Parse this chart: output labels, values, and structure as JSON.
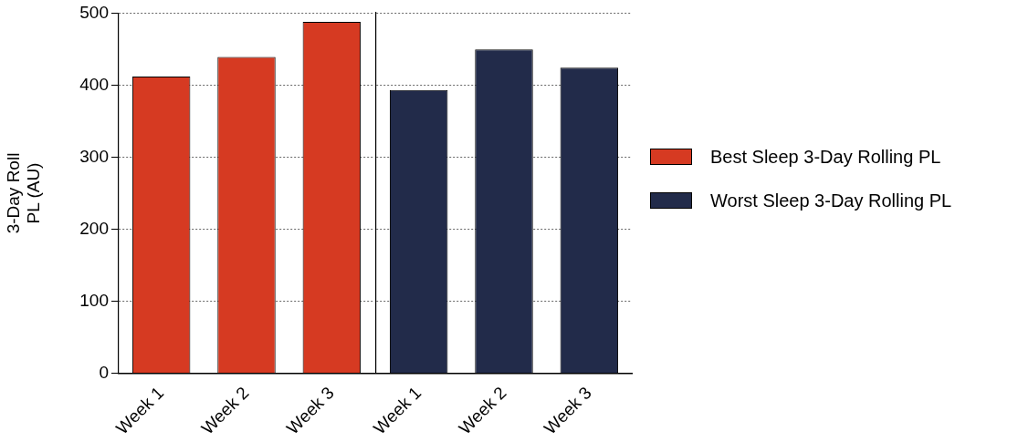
{
  "chart_data": [
    {
      "type": "bar",
      "ylabel": "3-Day Roll\nPL (AU)",
      "categories": [
        "Week 1",
        "Week 2",
        "Week 3"
      ],
      "series": [
        {
          "name": "Best Sleep 3-Day Rolling PL",
          "color": "#d63a22",
          "values": [
            412,
            439,
            488
          ]
        }
      ],
      "ylim": [
        0,
        500
      ],
      "yticks": [
        0,
        100,
        200,
        300,
        400,
        500
      ],
      "grid": "y",
      "legend": "right"
    },
    {
      "type": "bar",
      "categories": [
        "Week 1",
        "Week 2",
        "Week 3"
      ],
      "series": [
        {
          "name": "Worst Sleep 3-Day Rolling PL",
          "color": "#222b4a",
          "values": [
            393,
            449,
            424
          ]
        }
      ],
      "ylim": [
        0,
        500
      ],
      "yticks": [
        0,
        100,
        200,
        300,
        400,
        500
      ],
      "grid": "y",
      "legend": "right",
      "tick_labels": "x"
    }
  ]
}
